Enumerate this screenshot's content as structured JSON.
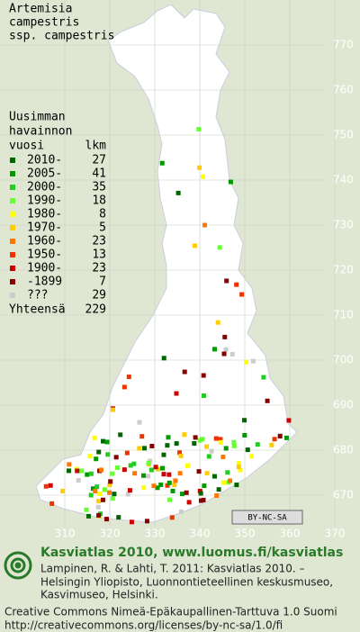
{
  "title": [
    "Artemisia",
    "campestris",
    "ssp. campestris"
  ],
  "legend": {
    "heading": [
      "Uusimman",
      "havainnon",
      "vuosi"
    ],
    "count_header": "lkm",
    "items": [
      {
        "label": "2010-",
        "count": 27,
        "color": "#006600"
      },
      {
        "label": "2005-",
        "count": 41,
        "color": "#009900"
      },
      {
        "label": "2000-",
        "count": 35,
        "color": "#22cc22"
      },
      {
        "label": "1990-",
        "count": 18,
        "color": "#66ff33"
      },
      {
        "label": "1980-",
        "count": 8,
        "color": "#ffff00"
      },
      {
        "label": "1970-",
        "count": 5,
        "color": "#ffcc00"
      },
      {
        "label": "1960-",
        "count": 23,
        "color": "#ff7700"
      },
      {
        "label": "1950-",
        "count": 13,
        "color": "#ee3300"
      },
      {
        "label": "1900-",
        "count": 23,
        "color": "#cc0000"
      },
      {
        "label": "-1899",
        "count": 7,
        "color": "#880000"
      },
      {
        "label": "???",
        "count": 29,
        "color": "#cccccc"
      }
    ],
    "total_label": "Yhteensä",
    "total": 229
  },
  "grid": {
    "north": [
      770,
      760,
      750,
      740,
      730,
      720,
      710,
      700,
      690,
      680,
      670
    ],
    "east": [
      310,
      320,
      330,
      340,
      350,
      360,
      370
    ]
  },
  "badge": "BY-NC-SA",
  "footer": {
    "brand": "Kasviatlas 2010, www.luomus.fi/kasviatlas",
    "citation": [
      "Lampinen, R. & Lahti, T. 2011: Kasviatlas 2010. –",
      "Helsingin Yliopisto, Luonnontieteellinen keskusmuseo,",
      "Kasvimuseo, Helsinki."
    ],
    "license": [
      "Creative Commons Nimeä-Epäkaupallinen-Tarttuva 1.0 Suomi",
      "http://creativecommons.org/licenses/by-nc-sa/1.0/fi"
    ]
  }
}
